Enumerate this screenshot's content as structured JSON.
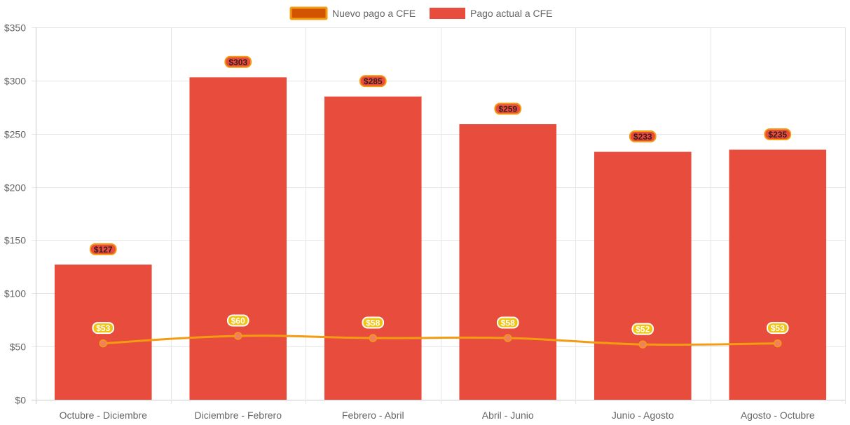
{
  "chart_data": {
    "type": "bar",
    "categories": [
      "Octubre - Diciembre",
      "Diciembre - Febrero",
      "Febrero - Abril",
      "Abril - Junio",
      "Junio - Agosto",
      "Agosto - Octubre"
    ],
    "series": [
      {
        "name": "Nuevo pago a CFE",
        "type": "line",
        "values": [
          53,
          60,
          58,
          58,
          52,
          53
        ],
        "data_labels": [
          "$53",
          "$60",
          "$58",
          "$58",
          "$52",
          "$53"
        ],
        "color": "#f39c12",
        "legend_fill": "#d35400"
      },
      {
        "name": "Pago actual a CFE",
        "type": "bar",
        "values": [
          127,
          303,
          285,
          259,
          233,
          235
        ],
        "data_labels": [
          "$127",
          "$303",
          "$285",
          "$259",
          "$233",
          "$235"
        ],
        "color": "#e74c3c"
      }
    ],
    "y_ticks": [
      "$0",
      "$50",
      "$100",
      "$150",
      "$200",
      "$250",
      "$300",
      "$350"
    ],
    "ylim": [
      0,
      350
    ],
    "grid": true,
    "legend": "top-center",
    "title": "",
    "xlabel": "",
    "ylabel": ""
  }
}
